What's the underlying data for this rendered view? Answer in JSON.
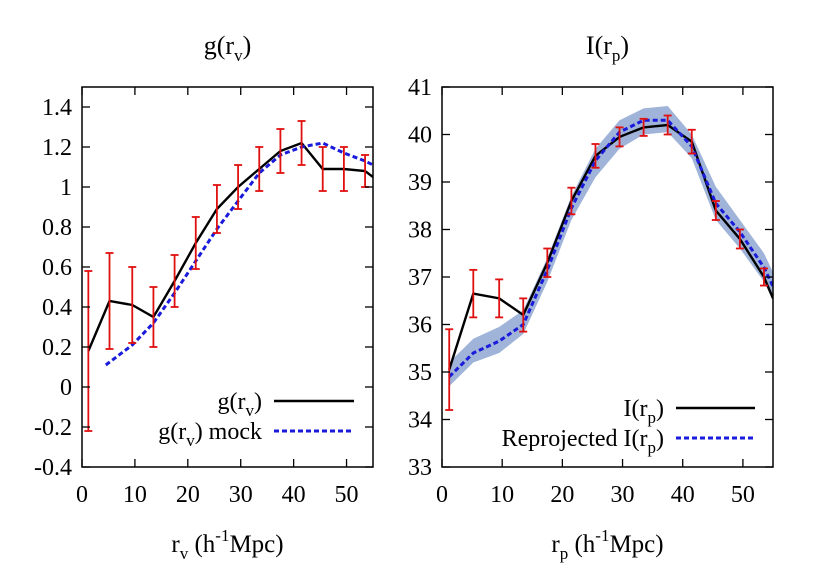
{
  "chart_data": [
    {
      "type": "line",
      "title_main": "g(r",
      "title_sub": "v",
      "title_end": ")",
      "xlabel_main": "r",
      "xlabel_sub": "v",
      "xlabel_rest": " (h",
      "xlabel_sup": "-1",
      "xlabel_end": "Mpc)",
      "xlim": [
        0,
        55
      ],
      "ylim": [
        -0.4,
        1.5
      ],
      "xticks": [
        0,
        10,
        20,
        30,
        40,
        50
      ],
      "xtick_labels": [
        "0",
        "10",
        "20",
        "30",
        "40",
        "50"
      ],
      "yticks": [
        -0.4,
        -0.2,
        0,
        0.2,
        0.4,
        0.6,
        0.8,
        1,
        1.2,
        1.4
      ],
      "ytick_labels": [
        "-0.4",
        "-0.2",
        "0",
        "0.2",
        "0.4",
        "0.6",
        "0.8",
        "1",
        "1.2",
        "1.4"
      ],
      "legend_position": "bottom-right",
      "series": [
        {
          "legend_main": "g(r",
          "legend_sub": "v",
          "legend_end": ")",
          "color": "#000000",
          "style": "solid",
          "x": [
            1.2,
            5.2,
            9.5,
            13.5,
            17.5,
            21.5,
            25.5,
            29.5,
            33.5,
            37.5,
            41.5,
            45.5,
            49.5,
            53.5,
            55
          ],
          "y": [
            0.18,
            0.43,
            0.41,
            0.35,
            0.53,
            0.72,
            0.89,
            1.0,
            1.09,
            1.18,
            1.22,
            1.09,
            1.09,
            1.08,
            1.05
          ],
          "yerr": [
            0.4,
            0.24,
            0.19,
            0.15,
            0.13,
            0.13,
            0.12,
            0.11,
            0.11,
            0.11,
            0.11,
            0.11,
            0.11,
            0.08,
            0
          ]
        },
        {
          "legend_main": "g(r",
          "legend_sub": "v",
          "legend_end": ") mock",
          "color": "#1a1adb",
          "style": "dashed",
          "x": [
            4.5,
            9.5,
            13.5,
            17.5,
            21.5,
            25.5,
            29.5,
            33.5,
            37.5,
            41.5,
            45.5,
            49.5,
            53.5,
            55
          ],
          "y": [
            0.11,
            0.21,
            0.32,
            0.47,
            0.63,
            0.79,
            0.93,
            1.07,
            1.16,
            1.2,
            1.22,
            1.17,
            1.13,
            1.11
          ]
        }
      ]
    },
    {
      "type": "line",
      "title_main": "I(r",
      "title_sub": "p",
      "title_end": ")",
      "xlabel_main": "r",
      "xlabel_sub": "p",
      "xlabel_rest": " (h",
      "xlabel_sup": "-1",
      "xlabel_end": "Mpc)",
      "xlim": [
        0,
        55
      ],
      "ylim": [
        33,
        41
      ],
      "xticks": [
        0,
        10,
        20,
        30,
        40,
        50
      ],
      "xtick_labels": [
        "0",
        "10",
        "20",
        "30",
        "40",
        "50"
      ],
      "yticks": [
        33,
        34,
        35,
        36,
        37,
        38,
        39,
        40,
        41
      ],
      "ytick_labels": [
        "33",
        "34",
        "35",
        "36",
        "37",
        "38",
        "39",
        "40",
        "41"
      ],
      "legend_position": "bottom-right",
      "band_color": "#9fb4d8",
      "band": {
        "x": [
          1.2,
          5.2,
          9.5,
          13.5,
          17.5,
          21.5,
          25.5,
          29.5,
          33.5,
          37.5,
          41.5,
          45.5,
          49.5,
          53.5,
          55
        ],
        "lo": [
          34.7,
          35.2,
          35.4,
          35.8,
          36.9,
          38.2,
          39.1,
          39.7,
          40.0,
          40.05,
          39.5,
          38.2,
          37.6,
          36.9,
          36.5
        ],
        "hi": [
          35.2,
          35.7,
          35.95,
          36.3,
          37.4,
          38.7,
          39.7,
          40.3,
          40.55,
          40.6,
          40.0,
          38.9,
          38.2,
          37.5,
          37.1
        ]
      },
      "series": [
        {
          "legend_main": "I(r",
          "legend_sub": "p",
          "legend_end": ")",
          "color": "#000000",
          "style": "solid",
          "x": [
            1.2,
            5.2,
            9.5,
            13.5,
            17.5,
            21.5,
            25.5,
            29.5,
            33.5,
            37.5,
            41.5,
            45.5,
            49.5,
            53.5,
            55
          ],
          "y": [
            35.05,
            36.65,
            36.55,
            36.2,
            37.3,
            38.6,
            39.55,
            39.95,
            40.15,
            40.2,
            39.85,
            38.4,
            37.8,
            37.0,
            36.55
          ],
          "yerr": [
            0.85,
            0.5,
            0.4,
            0.35,
            0.3,
            0.28,
            0.25,
            0.2,
            0.18,
            0.2,
            0.25,
            0.2,
            0.2,
            0.18,
            0
          ]
        },
        {
          "legend_main": "Reprojected I(r",
          "legend_sub": "p",
          "legend_end": ")",
          "color": "#1a1adb",
          "style": "dashed",
          "x": [
            1.2,
            5.2,
            9.5,
            13.5,
            17.5,
            21.5,
            25.5,
            29.5,
            33.5,
            37.5,
            41.5,
            45.5,
            49.5,
            53.5,
            55
          ],
          "y": [
            34.9,
            35.4,
            35.65,
            36.0,
            37.15,
            38.45,
            39.45,
            40.05,
            40.3,
            40.3,
            39.75,
            38.55,
            37.95,
            37.2,
            36.8
          ]
        }
      ]
    }
  ]
}
